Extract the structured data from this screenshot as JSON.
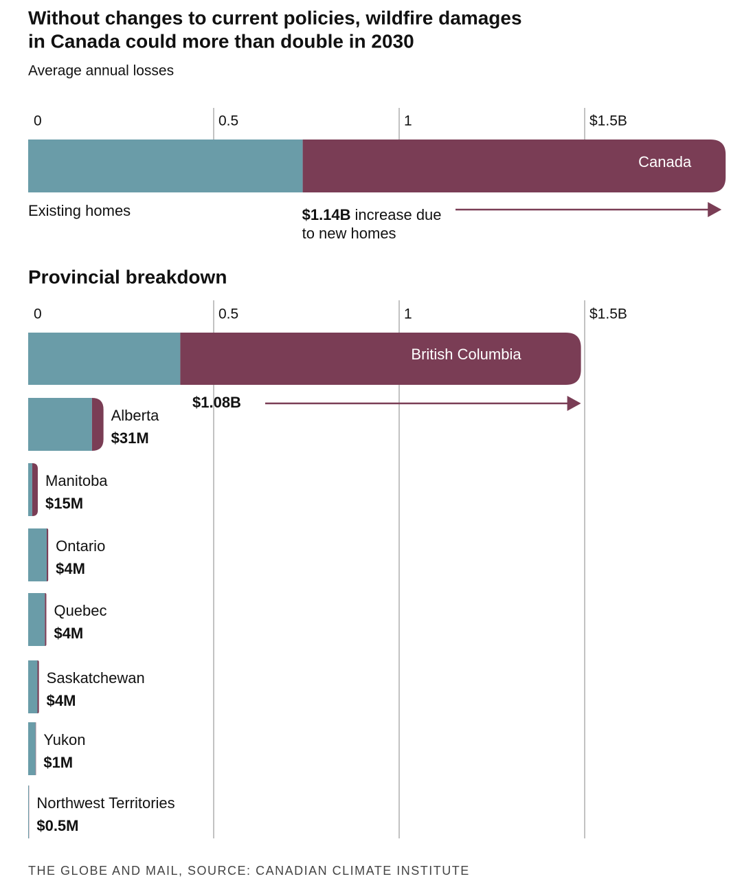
{
  "title": [
    "Without changes to current policies, wildfire damages",
    "in Canada could more than double in 2030"
  ],
  "subtitle": "Average annual losses",
  "source": "THE GLOBE AND MAIL, SOURCE: CANADIAN CLIMATE INSTITUTE",
  "chart_data": [
    {
      "type": "bar",
      "orientation": "horizontal",
      "stacked": true,
      "categories": [
        "Canada"
      ],
      "series": [
        {
          "name": "Existing homes",
          "color": "#6a9ca8",
          "values": [
            0.74
          ]
        },
        {
          "color": "#7a3d55",
          "values": [
            1.14
          ],
          "value_labels": [
            "$1.14B"
          ]
        }
      ],
      "annotation": [
        "increase due",
        "to new homes"
      ],
      "xlim": [
        0,
        1.9
      ],
      "xticks": [
        0,
        0.5,
        1,
        {
          "value": 1.5,
          "label": "$1.5B"
        }
      ]
    },
    {
      "type": "bar",
      "orientation": "horizontal",
      "stacked": true,
      "title": "Provincial breakdown",
      "categories": [
        "British Columbia",
        "Alberta",
        "Manitoba",
        "Ontario",
        "Quebec",
        "Saskatchewan",
        "Yukon",
        "Northwest Territories"
      ],
      "series": [
        {
          "color": "#6a9ca8",
          "values": [
            0.41,
            0.172,
            0.011,
            0.05,
            0.045,
            0.025,
            0.02,
            0.002
          ]
        },
        {
          "color": "#7a3d55",
          "values": [
            1.08,
            0.031,
            0.015,
            0.004,
            0.004,
            0.004,
            0.001,
            0.0005
          ],
          "value_labels": [
            "$1.08B",
            "$31M",
            "$15M",
            "$4M",
            "$4M",
            "$4M",
            "$1M",
            "$0.5M"
          ]
        }
      ],
      "xlim": [
        0,
        1.9
      ],
      "xticks": [
        0,
        0.5,
        1,
        {
          "value": 1.5,
          "label": "$1.5B"
        }
      ],
      "grid": true
    }
  ]
}
